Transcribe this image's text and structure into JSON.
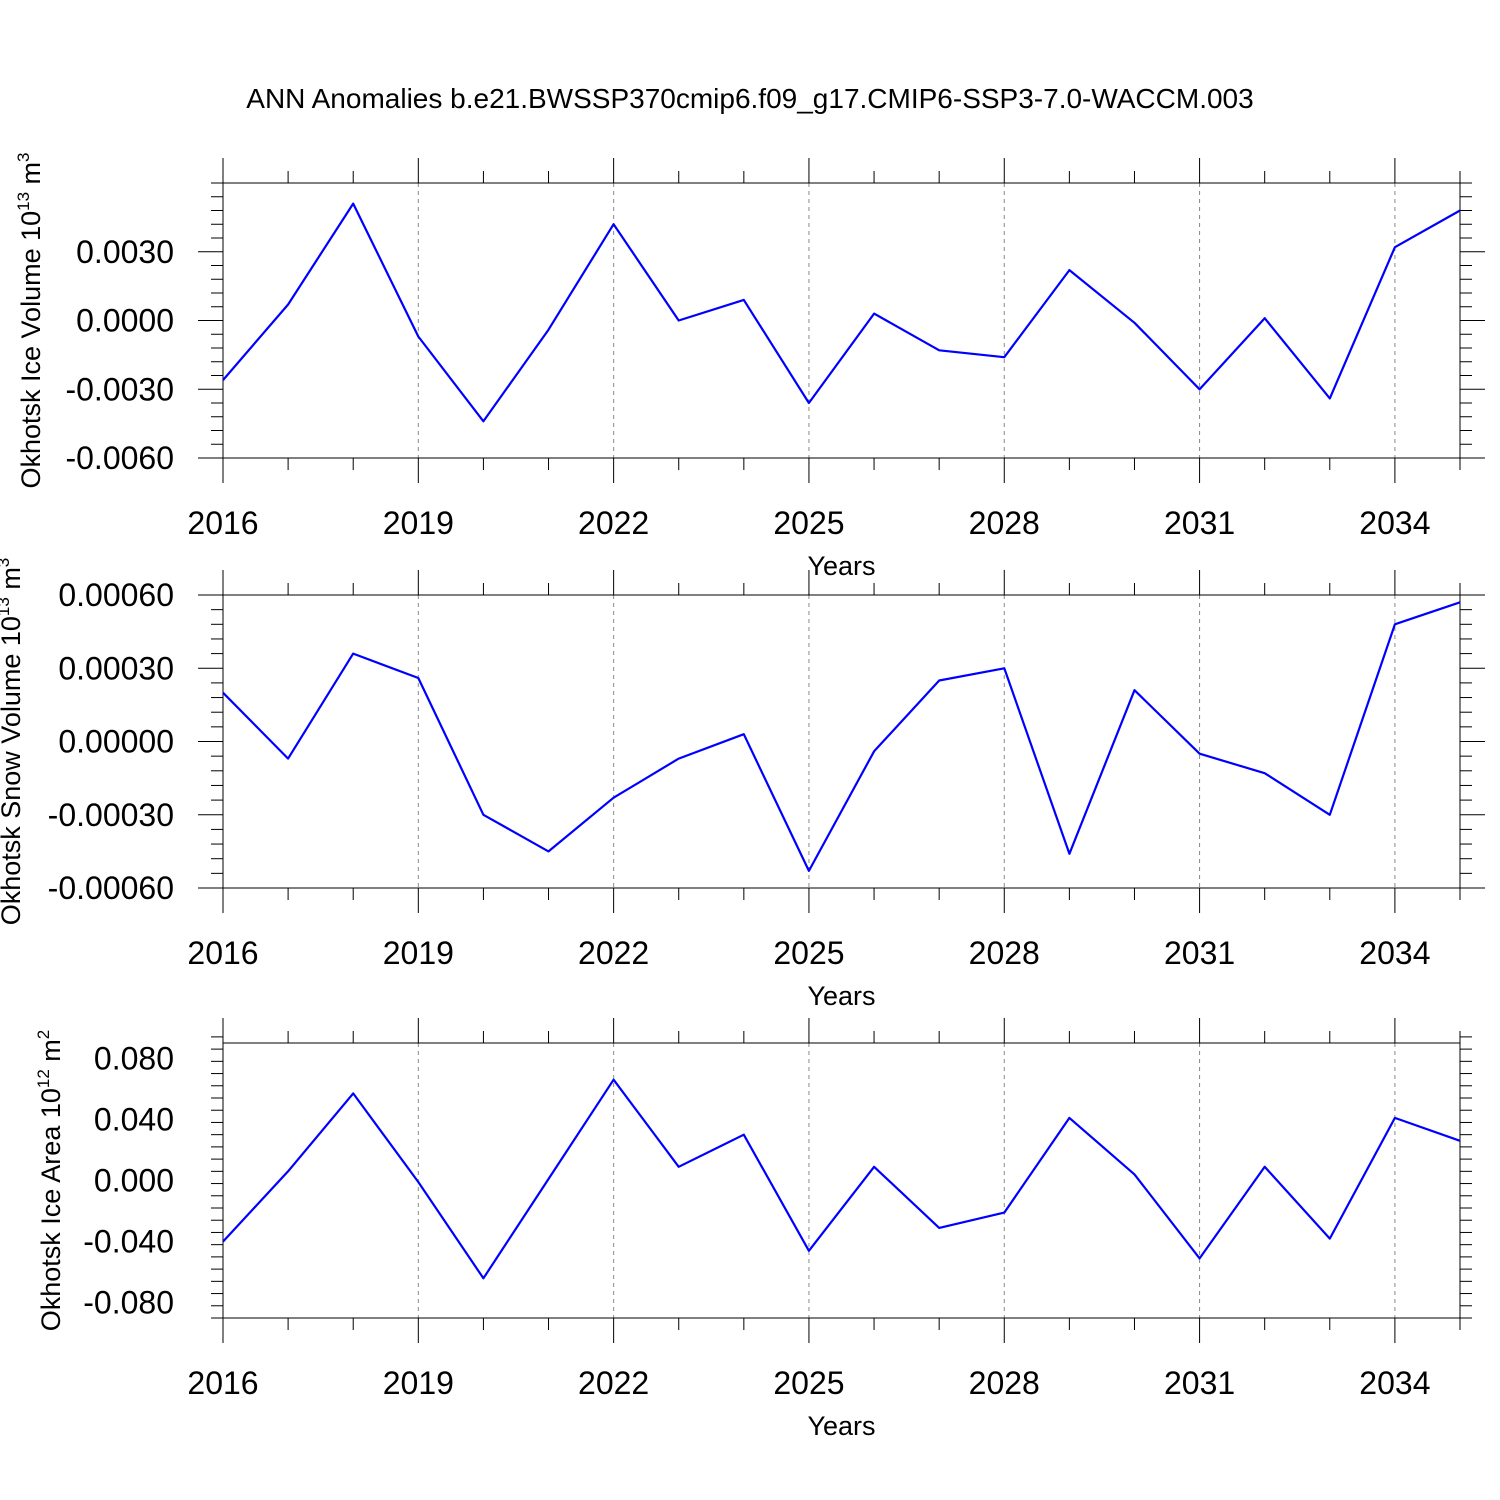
{
  "title": "ANN Anomalies b.e21.BWSSP370cmip6.f09_g17.CMIP6-SSP3-7.0-WACCM.003",
  "chart_data": [
    {
      "type": "line",
      "title": "ANN Anomalies b.e21.BWSSP370cmip6.f09_g17.CMIP6-SSP3-7.0-WACCM.003",
      "xlabel": "Years",
      "ylabel": {
        "base": "Okhotsk Ice Volume 10",
        "exp": "13",
        "unit": " m",
        "unit_exp": "3"
      },
      "xlim": [
        2016,
        2035
      ],
      "ylim": [
        -0.006,
        0.006
      ],
      "xticks": [
        2016,
        2019,
        2022,
        2025,
        2028,
        2031,
        2034
      ],
      "xtick_labels": [
        "2016",
        "2019",
        "2022",
        "2025",
        "2028",
        "2031",
        "2034"
      ],
      "yticks": [
        -0.006,
        -0.003,
        0.0,
        0.003
      ],
      "ytick_labels": [
        "-0.0060",
        "-0.0030",
        "0.0000",
        "0.0030"
      ],
      "color": "#0000ff",
      "grid": "vertical dashed at labeled years",
      "x": [
        2016,
        2017,
        2018,
        2019,
        2020,
        2021,
        2022,
        2023,
        2024,
        2025,
        2026,
        2027,
        2028,
        2029,
        2030,
        2031,
        2032,
        2033,
        2034,
        2035
      ],
      "values": [
        -0.0026,
        0.0007,
        0.0051,
        -0.0007,
        -0.0044,
        -0.0004,
        0.0042,
        -0.0,
        0.0009,
        -0.0036,
        0.0003,
        -0.0013,
        -0.0016,
        0.0022,
        -0.0001,
        -0.003,
        0.0001,
        -0.0034,
        0.0032,
        0.0048
      ]
    },
    {
      "type": "line",
      "xlabel": "Years",
      "ylabel": {
        "base": "Okhotsk Snow Volume 10",
        "exp": "13",
        "unit": " m",
        "unit_exp": "3"
      },
      "xlim": [
        2016,
        2035
      ],
      "ylim": [
        -0.0006,
        0.0006
      ],
      "xticks": [
        2016,
        2019,
        2022,
        2025,
        2028,
        2031,
        2034
      ],
      "xtick_labels": [
        "2016",
        "2019",
        "2022",
        "2025",
        "2028",
        "2031",
        "2034"
      ],
      "yticks": [
        -0.0006,
        -0.0003,
        0.0,
        0.0003,
        0.0006
      ],
      "ytick_labels": [
        "-0.00060",
        "-0.00030",
        "0.00000",
        "0.00030",
        "0.00060"
      ],
      "color": "#0000ff",
      "grid": "vertical dashed at labeled years",
      "x": [
        2016,
        2017,
        2018,
        2019,
        2020,
        2021,
        2022,
        2023,
        2024,
        2025,
        2026,
        2027,
        2028,
        2029,
        2030,
        2031,
        2032,
        2033,
        2034,
        2035
      ],
      "values": [
        0.0002,
        -7e-05,
        0.00036,
        0.00026,
        -0.0003,
        -0.00045,
        -0.00023,
        -7e-05,
        3e-05,
        -0.00053,
        -4e-05,
        0.00025,
        0.0003,
        -0.00046,
        0.00021,
        -5e-05,
        -0.00013,
        -0.0003,
        0.00048,
        0.00057
      ]
    },
    {
      "type": "line",
      "xlabel": "Years",
      "ylabel": {
        "base": "Okhotsk Ice Area 10",
        "exp": "12",
        "unit": " m",
        "unit_exp": "2"
      },
      "xlim": [
        2016,
        2035
      ],
      "ylim": [
        -0.09,
        0.09
      ],
      "xticks": [
        2016,
        2019,
        2022,
        2025,
        2028,
        2031,
        2034
      ],
      "xtick_labels": [
        "2016",
        "2019",
        "2022",
        "2025",
        "2028",
        "2031",
        "2034"
      ],
      "yticks": [
        -0.08,
        -0.04,
        0.0,
        0.04,
        0.08
      ],
      "ytick_labels": [
        "-0.080",
        "-0.040",
        "0.000",
        "0.040",
        "0.080"
      ],
      "color": "#0000ff",
      "grid": "vertical dashed at labeled years",
      "x": [
        2016,
        2017,
        2018,
        2019,
        2020,
        2021,
        2022,
        2023,
        2024,
        2025,
        2026,
        2027,
        2028,
        2029,
        2030,
        2031,
        2032,
        2033,
        2034,
        2035
      ],
      "values": [
        -0.04,
        0.006,
        0.057,
        -0.001,
        -0.064,
        0.001,
        0.066,
        0.009,
        0.03,
        -0.046,
        0.009,
        -0.031,
        -0.021,
        0.041,
        0.004,
        -0.051,
        0.009,
        -0.038,
        0.041,
        0.026
      ]
    }
  ]
}
